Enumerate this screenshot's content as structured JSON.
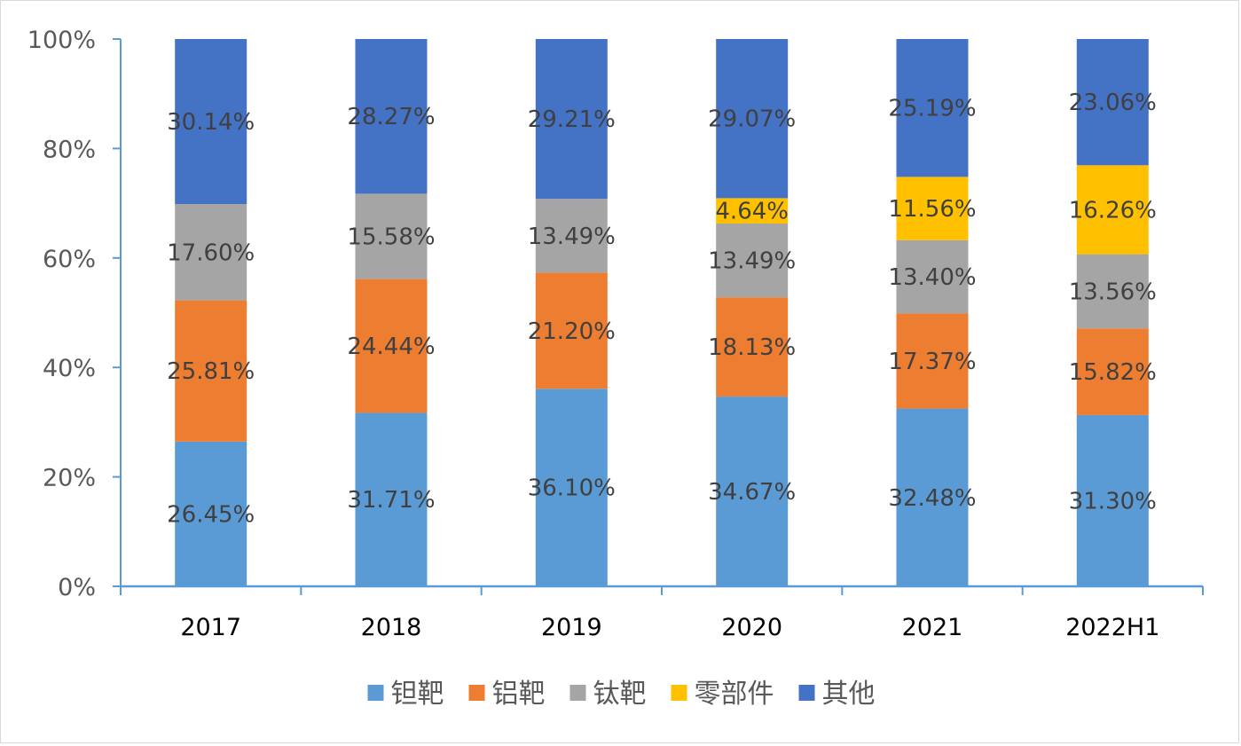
{
  "chart_data": {
    "type": "bar",
    "stacked": true,
    "categories": [
      "2017",
      "2018",
      "2019",
      "2020",
      "2021",
      "2022H1"
    ],
    "series": [
      {
        "name": "钽靶",
        "color": "#5B9BD5",
        "values": [
          26.45,
          31.71,
          36.1,
          34.67,
          32.48,
          31.3
        ],
        "labels": [
          "26.45%",
          "31.71%",
          "36.10%",
          "34.67%",
          "32.48%",
          "31.30%"
        ]
      },
      {
        "name": "铝靶",
        "color": "#ED7D31",
        "values": [
          25.81,
          24.44,
          21.2,
          18.13,
          17.37,
          15.82
        ],
        "labels": [
          "25.81%",
          "24.44%",
          "21.20%",
          "18.13%",
          "17.37%",
          "15.82%"
        ]
      },
      {
        "name": "钛靶",
        "color": "#A5A5A5",
        "values": [
          17.6,
          15.58,
          13.49,
          13.49,
          13.4,
          13.56
        ],
        "labels": [
          "17.60%",
          "15.58%",
          "13.49%",
          "13.49%",
          "13.40%",
          "13.56%"
        ]
      },
      {
        "name": "零部件",
        "color": "#FFC000",
        "values": [
          0,
          0,
          0,
          4.64,
          11.56,
          16.26
        ],
        "labels": [
          "",
          "",
          "",
          "4.64%",
          "11.56%",
          "16.26%"
        ]
      },
      {
        "name": "其他",
        "color": "#4472C4",
        "values": [
          30.14,
          28.27,
          29.21,
          29.07,
          25.19,
          23.06
        ],
        "labels": [
          "30.14%",
          "28.27%",
          "29.21%",
          "29.07%",
          "25.19%",
          "23.06%"
        ]
      }
    ],
    "ylim": [
      0,
      100
    ],
    "yticks": [
      "0%",
      "20%",
      "40%",
      "60%",
      "80%",
      "100%"
    ],
    "grid": false,
    "legend": "bottom",
    "axis_color": "#5B9BD5"
  }
}
